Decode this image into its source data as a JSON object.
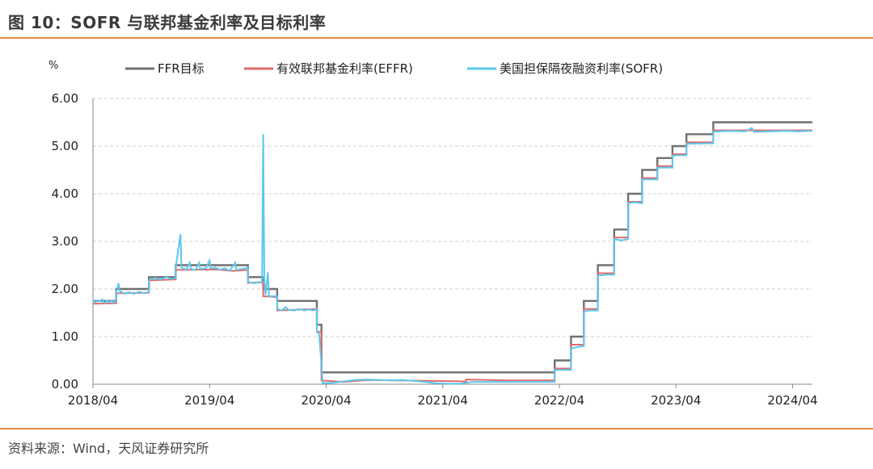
{
  "header": {
    "title": "图 10：SOFR 与联邦基金利率及目标利率"
  },
  "footer": {
    "source": "资料来源：Wind，天风证券研究所"
  },
  "chart_data": {
    "type": "line",
    "ylabel": "%",
    "ylim": [
      0,
      6
    ],
    "yticks": [
      "0.00",
      "1.00",
      "2.00",
      "3.00",
      "4.00",
      "5.00",
      "6.00"
    ],
    "xlim": [
      2018.25,
      2024.42
    ],
    "xticks": [
      {
        "t": 2018.25,
        "label": "2018/04"
      },
      {
        "t": 2019.25,
        "label": "2019/04"
      },
      {
        "t": 2020.25,
        "label": "2020/04"
      },
      {
        "t": 2021.25,
        "label": "2021/04"
      },
      {
        "t": 2022.25,
        "label": "2022/04"
      },
      {
        "t": 2023.25,
        "label": "2023/04"
      },
      {
        "t": 2024.25,
        "label": "2024/04"
      }
    ],
    "grid": true,
    "legend_position": "top",
    "series": [
      {
        "name": "FFR目标",
        "color": "#707070",
        "points": [
          [
            2018.25,
            1.75
          ],
          [
            2018.45,
            1.75
          ],
          [
            2018.45,
            2.0
          ],
          [
            2018.73,
            2.0
          ],
          [
            2018.73,
            2.25
          ],
          [
            2018.96,
            2.25
          ],
          [
            2018.96,
            2.5
          ],
          [
            2019.58,
            2.5
          ],
          [
            2019.58,
            2.25
          ],
          [
            2019.71,
            2.25
          ],
          [
            2019.71,
            2.0
          ],
          [
            2019.83,
            2.0
          ],
          [
            2019.83,
            1.75
          ],
          [
            2020.17,
            1.75
          ],
          [
            2020.17,
            1.25
          ],
          [
            2020.21,
            1.25
          ],
          [
            2020.21,
            0.25
          ],
          [
            2022.21,
            0.25
          ],
          [
            2022.21,
            0.5
          ],
          [
            2022.35,
            0.5
          ],
          [
            2022.35,
            1.0
          ],
          [
            2022.46,
            1.0
          ],
          [
            2022.46,
            1.75
          ],
          [
            2022.58,
            1.75
          ],
          [
            2022.58,
            2.5
          ],
          [
            2022.72,
            2.5
          ],
          [
            2022.72,
            3.25
          ],
          [
            2022.84,
            3.25
          ],
          [
            2022.84,
            4.0
          ],
          [
            2022.96,
            4.0
          ],
          [
            2022.96,
            4.5
          ],
          [
            2023.09,
            4.5
          ],
          [
            2023.09,
            4.75
          ],
          [
            2023.22,
            4.75
          ],
          [
            2023.22,
            5.0
          ],
          [
            2023.34,
            5.0
          ],
          [
            2023.34,
            5.25
          ],
          [
            2023.57,
            5.25
          ],
          [
            2023.57,
            5.5
          ],
          [
            2024.42,
            5.5
          ]
        ]
      },
      {
        "name": "有效联邦基金利率(EFFR)",
        "color": "#e06b6b",
        "points": [
          [
            2018.25,
            1.69
          ],
          [
            2018.45,
            1.7
          ],
          [
            2018.45,
            1.91
          ],
          [
            2018.73,
            1.92
          ],
          [
            2018.73,
            2.18
          ],
          [
            2018.96,
            2.2
          ],
          [
            2018.96,
            2.4
          ],
          [
            2019.3,
            2.41
          ],
          [
            2019.45,
            2.38
          ],
          [
            2019.58,
            2.4
          ],
          [
            2019.58,
            2.13
          ],
          [
            2019.71,
            2.14
          ],
          [
            2019.71,
            1.85
          ],
          [
            2019.83,
            1.83
          ],
          [
            2019.83,
            1.55
          ],
          [
            2020.17,
            1.58
          ],
          [
            2020.17,
            1.1
          ],
          [
            2020.21,
            1.1
          ],
          [
            2020.21,
            0.08
          ],
          [
            2020.4,
            0.05
          ],
          [
            2020.6,
            0.09
          ],
          [
            2021.2,
            0.07
          ],
          [
            2021.45,
            0.06
          ],
          [
            2021.45,
            0.1
          ],
          [
            2021.8,
            0.08
          ],
          [
            2022.21,
            0.08
          ],
          [
            2022.21,
            0.33
          ],
          [
            2022.35,
            0.33
          ],
          [
            2022.35,
            0.83
          ],
          [
            2022.46,
            0.83
          ],
          [
            2022.46,
            1.58
          ],
          [
            2022.58,
            1.58
          ],
          [
            2022.58,
            2.33
          ],
          [
            2022.72,
            2.33
          ],
          [
            2022.72,
            3.08
          ],
          [
            2022.84,
            3.08
          ],
          [
            2022.84,
            3.83
          ],
          [
            2022.96,
            3.83
          ],
          [
            2022.96,
            4.33
          ],
          [
            2023.09,
            4.33
          ],
          [
            2023.09,
            4.58
          ],
          [
            2023.22,
            4.58
          ],
          [
            2023.22,
            4.83
          ],
          [
            2023.34,
            4.83
          ],
          [
            2023.34,
            5.08
          ],
          [
            2023.57,
            5.08
          ],
          [
            2023.57,
            5.33
          ],
          [
            2024.42,
            5.33
          ]
        ]
      },
      {
        "name": "美国担保隔夜融资利率(SOFR)",
        "color": "#5bc8ee",
        "points": [
          [
            2018.25,
            1.77
          ],
          [
            2018.27,
            1.72
          ],
          [
            2018.29,
            1.76
          ],
          [
            2018.31,
            1.74
          ],
          [
            2018.33,
            1.78
          ],
          [
            2018.35,
            1.7
          ],
          [
            2018.37,
            1.75
          ],
          [
            2018.39,
            1.72
          ],
          [
            2018.41,
            1.76
          ],
          [
            2018.43,
            1.71
          ],
          [
            2018.45,
            1.77
          ],
          [
            2018.45,
            1.93
          ],
          [
            2018.47,
            2.12
          ],
          [
            2018.48,
            1.96
          ],
          [
            2018.52,
            1.9
          ],
          [
            2018.56,
            1.93
          ],
          [
            2018.6,
            1.9
          ],
          [
            2018.65,
            1.94
          ],
          [
            2018.69,
            1.91
          ],
          [
            2018.73,
            1.94
          ],
          [
            2018.73,
            2.19
          ],
          [
            2018.78,
            2.23
          ],
          [
            2018.83,
            2.2
          ],
          [
            2018.88,
            2.25
          ],
          [
            2018.92,
            2.21
          ],
          [
            2018.96,
            2.23
          ],
          [
            2018.96,
            2.45
          ],
          [
            2019.0,
            3.15
          ],
          [
            2019.01,
            2.45
          ],
          [
            2019.05,
            2.4
          ],
          [
            2019.08,
            2.55
          ],
          [
            2019.09,
            2.42
          ],
          [
            2019.13,
            2.4
          ],
          [
            2019.16,
            2.55
          ],
          [
            2019.17,
            2.42
          ],
          [
            2019.22,
            2.44
          ],
          [
            2019.25,
            2.6
          ],
          [
            2019.26,
            2.43
          ],
          [
            2019.3,
            2.45
          ],
          [
            2019.34,
            2.4
          ],
          [
            2019.38,
            2.44
          ],
          [
            2019.42,
            2.38
          ],
          [
            2019.47,
            2.55
          ],
          [
            2019.48,
            2.4
          ],
          [
            2019.53,
            2.42
          ],
          [
            2019.58,
            2.45
          ],
          [
            2019.58,
            2.15
          ],
          [
            2019.63,
            2.12
          ],
          [
            2019.67,
            2.14
          ],
          [
            2019.7,
            2.15
          ],
          [
            2019.71,
            5.25
          ],
          [
            2019.72,
            2.2
          ],
          [
            2019.73,
            1.88
          ],
          [
            2019.75,
            2.35
          ],
          [
            2019.76,
            1.85
          ],
          [
            2019.8,
            1.85
          ],
          [
            2019.83,
            1.85
          ],
          [
            2019.83,
            1.58
          ],
          [
            2019.87,
            1.55
          ],
          [
            2019.9,
            1.62
          ],
          [
            2019.93,
            1.56
          ],
          [
            2019.98,
            1.55
          ],
          [
            2020.02,
            1.58
          ],
          [
            2020.06,
            1.55
          ],
          [
            2020.1,
            1.57
          ],
          [
            2020.14,
            1.55
          ],
          [
            2020.17,
            1.58
          ],
          [
            2020.17,
            1.1
          ],
          [
            2020.19,
            1.05
          ],
          [
            2020.21,
            0.4
          ],
          [
            2020.22,
            0.02
          ],
          [
            2020.3,
            0.03
          ],
          [
            2020.4,
            0.06
          ],
          [
            2020.5,
            0.09
          ],
          [
            2020.6,
            0.1
          ],
          [
            2020.7,
            0.09
          ],
          [
            2020.8,
            0.08
          ],
          [
            2020.9,
            0.09
          ],
          [
            2021.0,
            0.07
          ],
          [
            2021.1,
            0.05
          ],
          [
            2021.2,
            0.02
          ],
          [
            2021.3,
            0.01
          ],
          [
            2021.4,
            0.01
          ],
          [
            2021.5,
            0.05
          ],
          [
            2021.6,
            0.05
          ],
          [
            2021.7,
            0.05
          ],
          [
            2021.8,
            0.05
          ],
          [
            2021.9,
            0.05
          ],
          [
            2022.0,
            0.05
          ],
          [
            2022.1,
            0.05
          ],
          [
            2022.21,
            0.05
          ],
          [
            2022.21,
            0.3
          ],
          [
            2022.35,
            0.3
          ],
          [
            2022.35,
            0.75
          ],
          [
            2022.4,
            0.78
          ],
          [
            2022.46,
            0.8
          ],
          [
            2022.46,
            1.52
          ],
          [
            2022.5,
            1.55
          ],
          [
            2022.58,
            1.55
          ],
          [
            2022.58,
            2.28
          ],
          [
            2022.65,
            2.3
          ],
          [
            2022.72,
            2.3
          ],
          [
            2022.72,
            3.05
          ],
          [
            2022.78,
            3.02
          ],
          [
            2022.84,
            3.05
          ],
          [
            2022.84,
            3.8
          ],
          [
            2022.9,
            3.82
          ],
          [
            2022.96,
            3.8
          ],
          [
            2022.96,
            4.3
          ],
          [
            2023.09,
            4.3
          ],
          [
            2023.09,
            4.55
          ],
          [
            2023.22,
            4.55
          ],
          [
            2023.22,
            4.8
          ],
          [
            2023.34,
            4.81
          ],
          [
            2023.34,
            5.05
          ],
          [
            2023.57,
            5.06
          ],
          [
            2023.57,
            5.3
          ],
          [
            2023.7,
            5.32
          ],
          [
            2023.85,
            5.31
          ],
          [
            2023.9,
            5.38
          ],
          [
            2023.92,
            5.3
          ],
          [
            2024.05,
            5.31
          ],
          [
            2024.2,
            5.32
          ],
          [
            2024.3,
            5.31
          ],
          [
            2024.42,
            5.32
          ]
        ]
      }
    ]
  }
}
